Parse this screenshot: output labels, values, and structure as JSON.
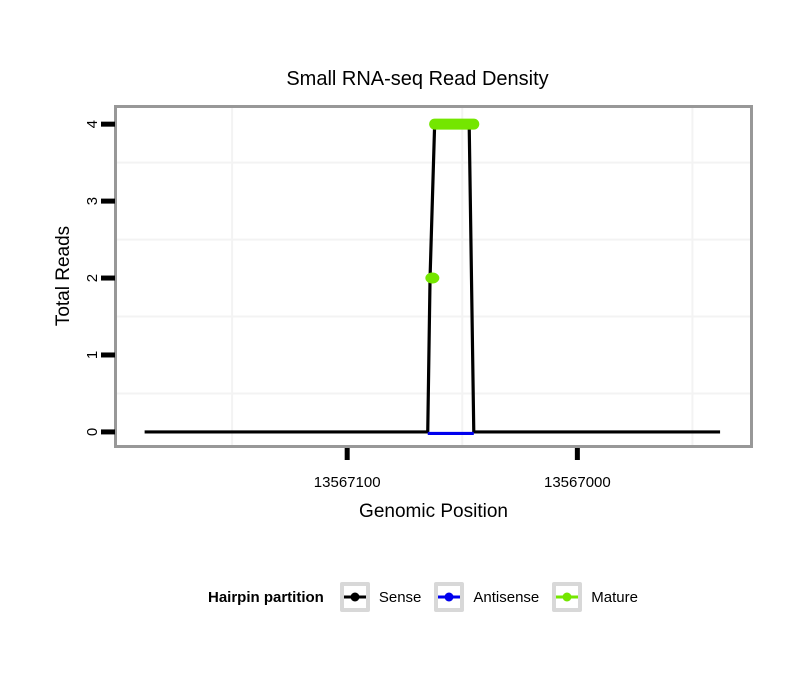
{
  "title": "Small RNA-seq Read Density",
  "panel": {
    "background": "#ffffff",
    "border_color": "#989898",
    "minor_grid_color": "#f3f3f3",
    "tick_color": "#000000"
  },
  "x_axis": {
    "label": "Genomic Position",
    "tick_values": [
      13567100,
      13567000
    ],
    "tick_labels": [
      "13567100",
      "13567000"
    ],
    "minor_ticks": [
      13567150,
      13567050,
      13566950
    ],
    "range": [
      13567200,
      13566925
    ],
    "direction": "decreasing"
  },
  "y_axis": {
    "label": "Total Reads",
    "tick_values": [
      0,
      1,
      2,
      3,
      4
    ],
    "tick_labels": [
      "0",
      "1",
      "2",
      "3",
      "4"
    ],
    "minor_ticks": [
      0.5,
      1.5,
      2.5,
      3.5
    ],
    "range": [
      -0.17,
      4.21
    ]
  },
  "legend": {
    "title": "Hairpin partition",
    "items": [
      {
        "label": "Sense",
        "color": "#000000"
      },
      {
        "label": "Antisense",
        "color": "#0000ee"
      },
      {
        "label": "Mature",
        "color": "#74e600"
      }
    ]
  },
  "chart_data": {
    "type": "line",
    "title": "Small RNA-seq Read Density",
    "xlabel": "Genomic Position",
    "ylabel": "Total Reads",
    "xlim": [
      13567200,
      13566925
    ],
    "ylim": [
      0,
      4
    ],
    "x_ticks": [
      13567100,
      13567000
    ],
    "y_ticks": [
      0,
      1,
      2,
      3,
      4
    ],
    "grid": "minor-only",
    "legend_position": "bottom",
    "series": [
      {
        "name": "Sense",
        "color": "#000000",
        "role": "read-coverage-line",
        "points": [
          [
            13567188,
            0
          ],
          [
            13567065,
            0
          ],
          [
            13567064,
            2
          ],
          [
            13567062,
            4
          ],
          [
            13567047,
            4
          ],
          [
            13567045,
            0
          ],
          [
            13566938,
            0
          ]
        ]
      },
      {
        "name": "Antisense",
        "color": "#0000ee",
        "role": "read-coverage-line",
        "points": [
          [
            13567065,
            0
          ],
          [
            13567045,
            0
          ]
        ]
      },
      {
        "name": "Mature",
        "color": "#74e600",
        "role": "mature-mirna-span",
        "points": [
          [
            13567062,
            4
          ],
          [
            13567045,
            4
          ]
        ],
        "markers": [
          [
            13567063,
            2
          ]
        ]
      }
    ]
  }
}
